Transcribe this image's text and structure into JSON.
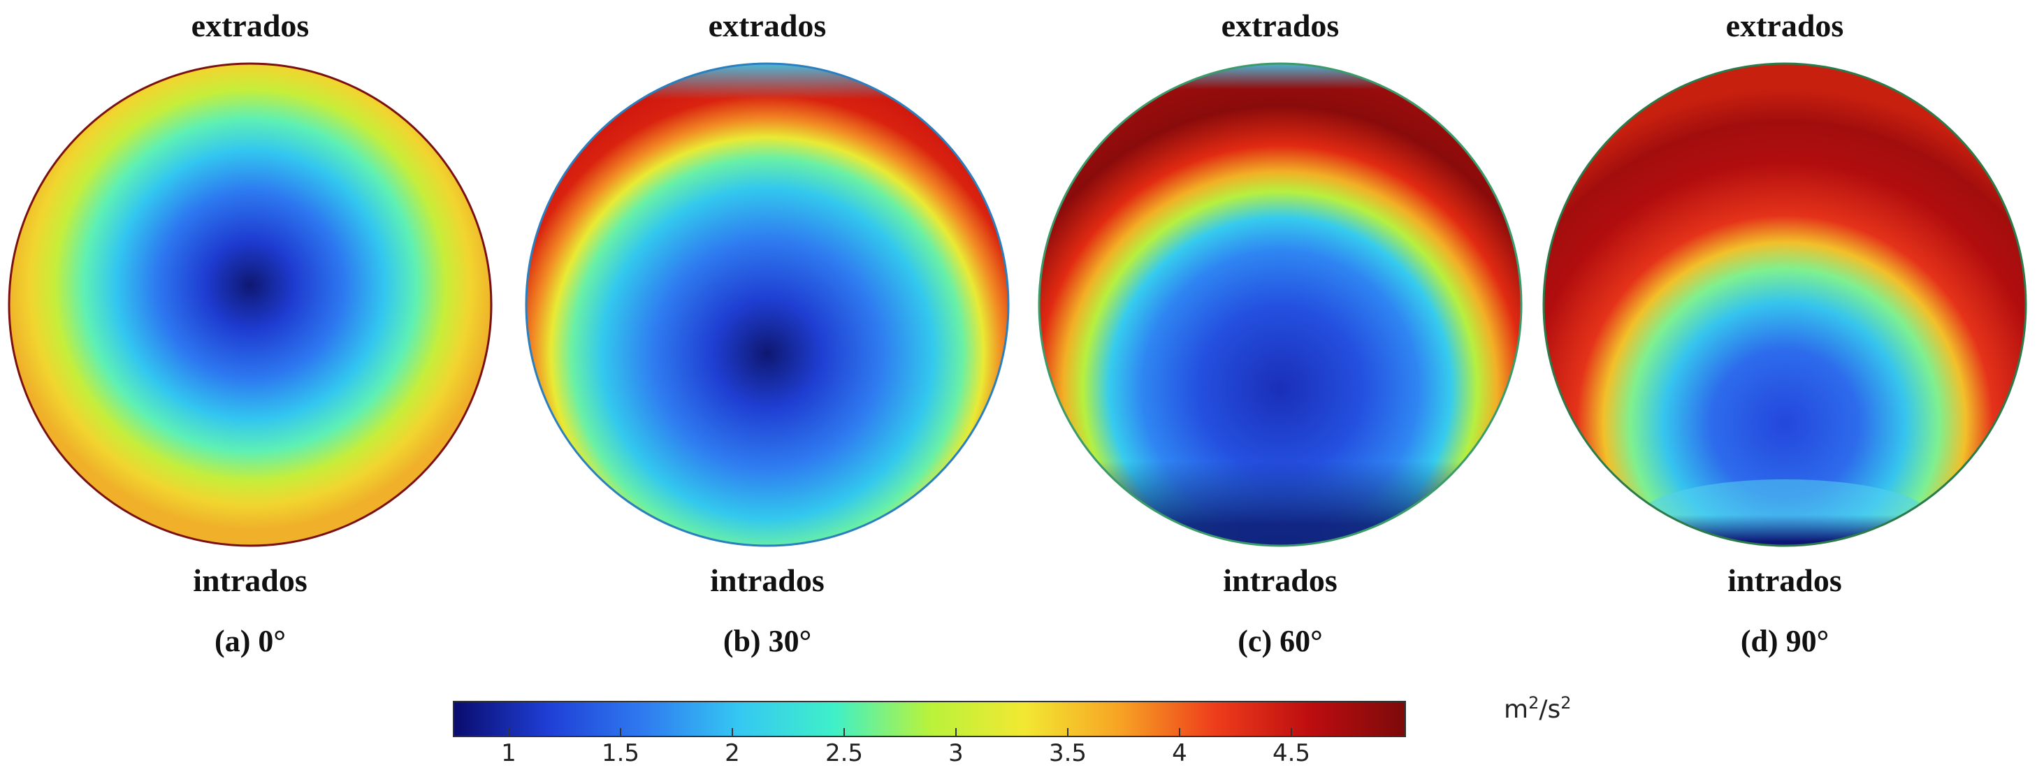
{
  "panels": [
    {
      "top_label": "extrados",
      "bottom_label": "intrados",
      "caption": "(a) 0°"
    },
    {
      "top_label": "extrados",
      "bottom_label": "intrados",
      "caption": "(b) 30°"
    },
    {
      "top_label": "extrados",
      "bottom_label": "intrados",
      "caption": "(c) 60°"
    },
    {
      "top_label": "extrados",
      "bottom_label": "intrados",
      "caption": "(d) 90°"
    }
  ],
  "colorbar": {
    "ticks": [
      "1",
      "1.5",
      "2",
      "2.5",
      "3",
      "3.5",
      "4",
      "4.5"
    ],
    "unit_base": "m",
    "unit_exp1": "2",
    "unit_sep": "/s",
    "unit_exp2": "2",
    "colors": [
      "#0a0c6e",
      "#1f3fd6",
      "#2f7bf0",
      "#35c8f2",
      "#3ff0c8",
      "#b9f23b",
      "#f2e832",
      "#f7a324",
      "#ee3d1b",
      "#bd0d10",
      "#7c0a0a"
    ]
  }
}
